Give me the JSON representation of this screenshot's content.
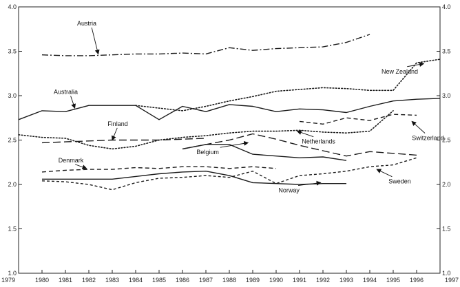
{
  "chart_data": {
    "type": "line",
    "title": "",
    "xlabel": "",
    "ylabel": "",
    "xlim": [
      1979,
      1997
    ],
    "ylim": [
      1.0,
      4.0
    ],
    "grid": false,
    "legend": "inline labels with arrows",
    "x_ticks": [
      "1979",
      "1980",
      "1981",
      "1982",
      "1983",
      "1984",
      "1985",
      "1986",
      "1987",
      "1988",
      "1989",
      "1990",
      "1991",
      "1992",
      "1993",
      "1994",
      "1995",
      "1996",
      "1997"
    ],
    "y_ticks_left": [
      "1.0",
      "1.5",
      "2.0",
      "2.5",
      "3.0",
      "3.5",
      "4.0"
    ],
    "y_ticks_right": [
      "1.0",
      "1.5",
      "2.0",
      "2.5",
      "3.0",
      "3.5",
      "4.0"
    ],
    "series": [
      {
        "name": "Austria",
        "style": "dashdot",
        "x": [
          1980,
          1981,
          1982,
          1983,
          1984,
          1985,
          1986,
          1987,
          1988,
          1989,
          1990,
          1991,
          1992,
          1993,
          1994
        ],
        "y": [
          3.46,
          3.45,
          3.45,
          3.46,
          3.47,
          3.47,
          3.48,
          3.47,
          3.54,
          3.51,
          3.53,
          3.54,
          3.55,
          3.6,
          3.69
        ]
      },
      {
        "name": "New Zealand",
        "style": "dotted",
        "x": [
          1984,
          1985,
          1986,
          1987,
          1988,
          1989,
          1990,
          1991,
          1992,
          1993,
          1994,
          1995,
          1996,
          1997
        ],
        "y": [
          2.89,
          2.86,
          2.83,
          2.88,
          2.94,
          2.99,
          3.05,
          3.07,
          3.09,
          3.08,
          3.06,
          3.06,
          3.37,
          3.41
        ]
      },
      {
        "name": "Australia",
        "style": "solid",
        "x": [
          1979,
          1980,
          1981,
          1982,
          1983,
          1984,
          1985,
          1986,
          1987,
          1988,
          1989,
          1990,
          1991,
          1992,
          1993,
          1994,
          1995,
          1996,
          1997
        ],
        "y": [
          2.73,
          2.83,
          2.82,
          2.89,
          2.89,
          2.89,
          2.73,
          2.88,
          2.82,
          2.9,
          2.88,
          2.82,
          2.85,
          2.84,
          2.81,
          2.88,
          2.94,
          2.96,
          2.97
        ]
      },
      {
        "name": "Finland",
        "style": "longdash",
        "x": [
          1980,
          1981,
          1982,
          1983,
          1984,
          1985,
          1986,
          1987
        ],
        "y": [
          2.47,
          2.48,
          2.49,
          2.5,
          2.5,
          2.5,
          2.51,
          2.52
        ]
      },
      {
        "name": "Netherlands",
        "style": "dotted",
        "x": [
          1979,
          1980,
          1981,
          1982,
          1983,
          1984,
          1985,
          1986,
          1987,
          1988,
          1989,
          1990,
          1991,
          1992,
          1993,
          1994,
          1995
        ],
        "y": [
          2.56,
          2.53,
          2.52,
          2.44,
          2.4,
          2.43,
          2.5,
          2.53,
          2.55,
          2.58,
          2.6,
          2.6,
          2.61,
          2.59,
          2.58,
          2.6,
          2.83
        ]
      },
      {
        "name": "Switzerland",
        "style": "dashed",
        "x": [
          1991,
          1992,
          1993,
          1994,
          1995,
          1996
        ],
        "y": [
          2.71,
          2.68,
          2.75,
          2.72,
          2.79,
          2.78
        ]
      },
      {
        "name": "Belgium",
        "style": "longdash",
        "x": [
          1986,
          1987,
          1988,
          1989,
          1990,
          1991,
          1992,
          1993,
          1994,
          1995,
          1996
        ],
        "y": [
          2.4,
          2.45,
          2.5,
          2.57,
          2.51,
          2.44,
          2.38,
          2.32,
          2.37,
          2.35,
          2.33
        ]
      },
      {
        "name": "Belgium",
        "style": "solid",
        "x": [
          1986,
          1987,
          1988,
          1989,
          1990,
          1991,
          1992,
          1993
        ],
        "y": [
          2.4,
          2.45,
          2.45,
          2.34,
          2.32,
          2.3,
          2.31,
          2.27
        ]
      },
      {
        "name": "Denmark",
        "style": "dashed",
        "x": [
          1980,
          1981,
          1982,
          1983,
          1984,
          1985,
          1986,
          1987,
          1988,
          1989,
          1990
        ],
        "y": [
          2.14,
          2.16,
          2.17,
          2.17,
          2.19,
          2.18,
          2.2,
          2.2,
          2.18,
          2.2,
          2.18
        ]
      },
      {
        "name": "Sweden",
        "style": "shortdash",
        "x": [
          1980,
          1981,
          1982,
          1983,
          1984,
          1985,
          1986,
          1987,
          1988,
          1989,
          1990,
          1991,
          1992,
          1993,
          1994,
          1995,
          1996
        ],
        "y": [
          2.04,
          2.03,
          2.0,
          1.94,
          2.02,
          2.07,
          2.08,
          2.1,
          2.08,
          2.15,
          2.01,
          2.1,
          2.12,
          2.15,
          2.2,
          2.22,
          2.3
        ]
      },
      {
        "name": "Norway",
        "style": "solid",
        "x": [
          1980,
          1981,
          1982,
          1983,
          1984,
          1985,
          1986,
          1987,
          1988,
          1989,
          1990,
          1991,
          1992,
          1993
        ],
        "y": [
          2.06,
          2.06,
          2.06,
          2.06,
          2.09,
          2.12,
          2.14,
          2.15,
          2.1,
          2.02,
          2.01,
          2.0,
          2.01,
          2.01
        ]
      }
    ],
    "annotations": [
      {
        "text": "Austria",
        "x": 1981.5,
        "y": 3.79,
        "ax": 1982.4,
        "ay": 3.47
      },
      {
        "text": "New Zealand",
        "x": 1994.5,
        "y": 3.25,
        "ax": 1996.3,
        "ay": 3.36
      },
      {
        "text": "Australia",
        "x": 1980.5,
        "y": 3.02,
        "ax": 1981.4,
        "ay": 2.86
      },
      {
        "text": "Finland",
        "x": 1982.8,
        "y": 2.66,
        "ax": 1983.0,
        "ay": 2.5
      },
      {
        "text": "Netherlands",
        "x": 1991.1,
        "y": 2.46,
        "ax": 1990.9,
        "ay": 2.6
      },
      {
        "text": "Switzerland",
        "x": 1995.8,
        "y": 2.5,
        "ax": 1995.8,
        "ay": 2.71
      },
      {
        "text": "Belgium",
        "x": 1986.6,
        "y": 2.34,
        "ax": 1988.8,
        "ay": 2.47
      },
      {
        "text": "Denmark",
        "x": 1980.7,
        "y": 2.25,
        "ax": 1981.9,
        "ay": 2.18
      },
      {
        "text": "Sweden",
        "x": 1994.8,
        "y": 2.01,
        "ax": 1994.3,
        "ay": 2.17
      },
      {
        "text": "Norway",
        "x": 1990.1,
        "y": 1.91,
        "ax": 1991.9,
        "ay": 2.02
      }
    ]
  }
}
